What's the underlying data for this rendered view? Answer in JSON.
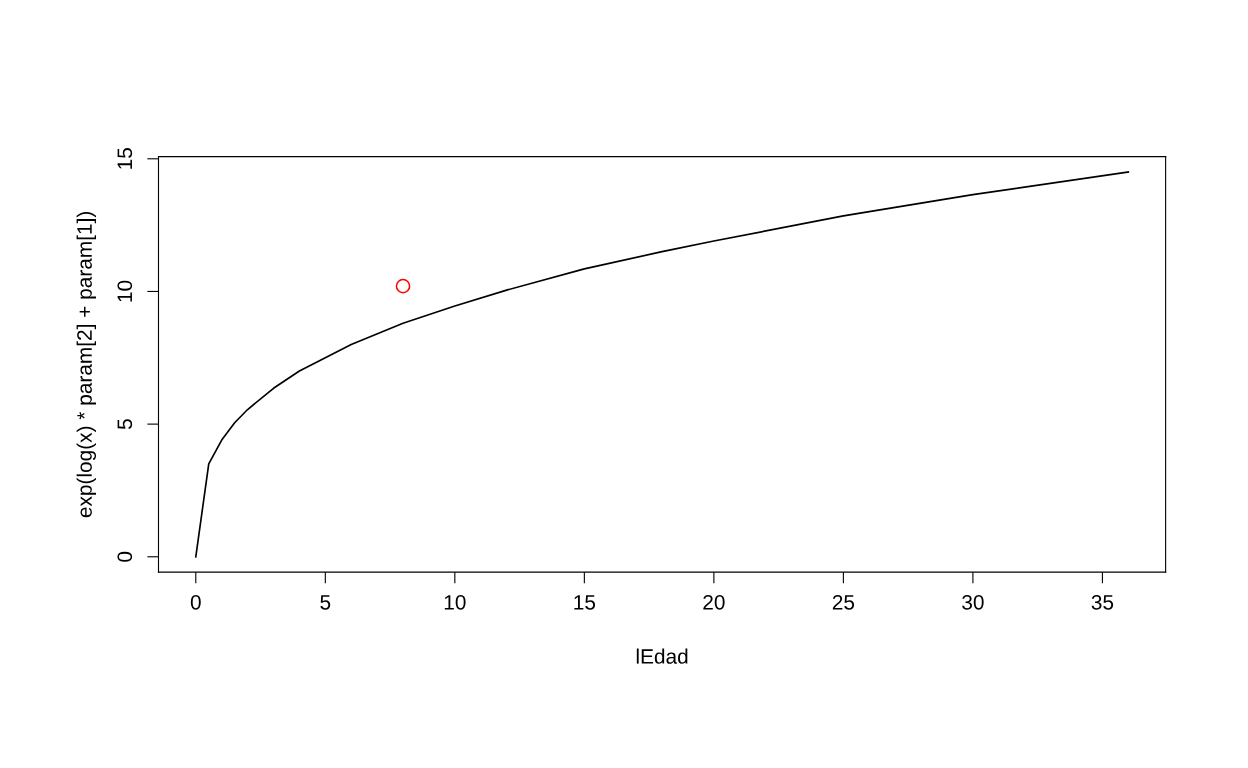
{
  "chart_data": {
    "type": "line",
    "xlabel": "lEdad",
    "ylabel": "exp(log(x) * param[2] + param[1])",
    "xlim": [
      -1.44,
      37.44
    ],
    "ylim": [
      -0.58,
      15.08
    ],
    "xticks": [
      0,
      5,
      10,
      15,
      20,
      25,
      30,
      35
    ],
    "yticks": [
      0,
      5,
      10,
      15
    ],
    "grid": false,
    "series": [
      {
        "color": "#000000",
        "marker": "none",
        "line_style": "solid",
        "x": [
          0,
          0.5,
          1,
          1.5,
          2,
          3,
          4,
          5,
          6,
          8,
          10,
          12,
          15,
          18,
          20,
          25,
          30,
          36
        ],
        "values": [
          0,
          3.5,
          4.4,
          5.05,
          5.55,
          6.35,
          7.0,
          7.5,
          8.0,
          8.8,
          9.45,
          10.05,
          10.85,
          11.5,
          11.9,
          12.85,
          13.65,
          14.5
        ]
      },
      {
        "type": "scatter",
        "color": "#ff0000",
        "marker": "circle",
        "x": [
          8
        ],
        "values": [
          10.2
        ]
      }
    ]
  }
}
